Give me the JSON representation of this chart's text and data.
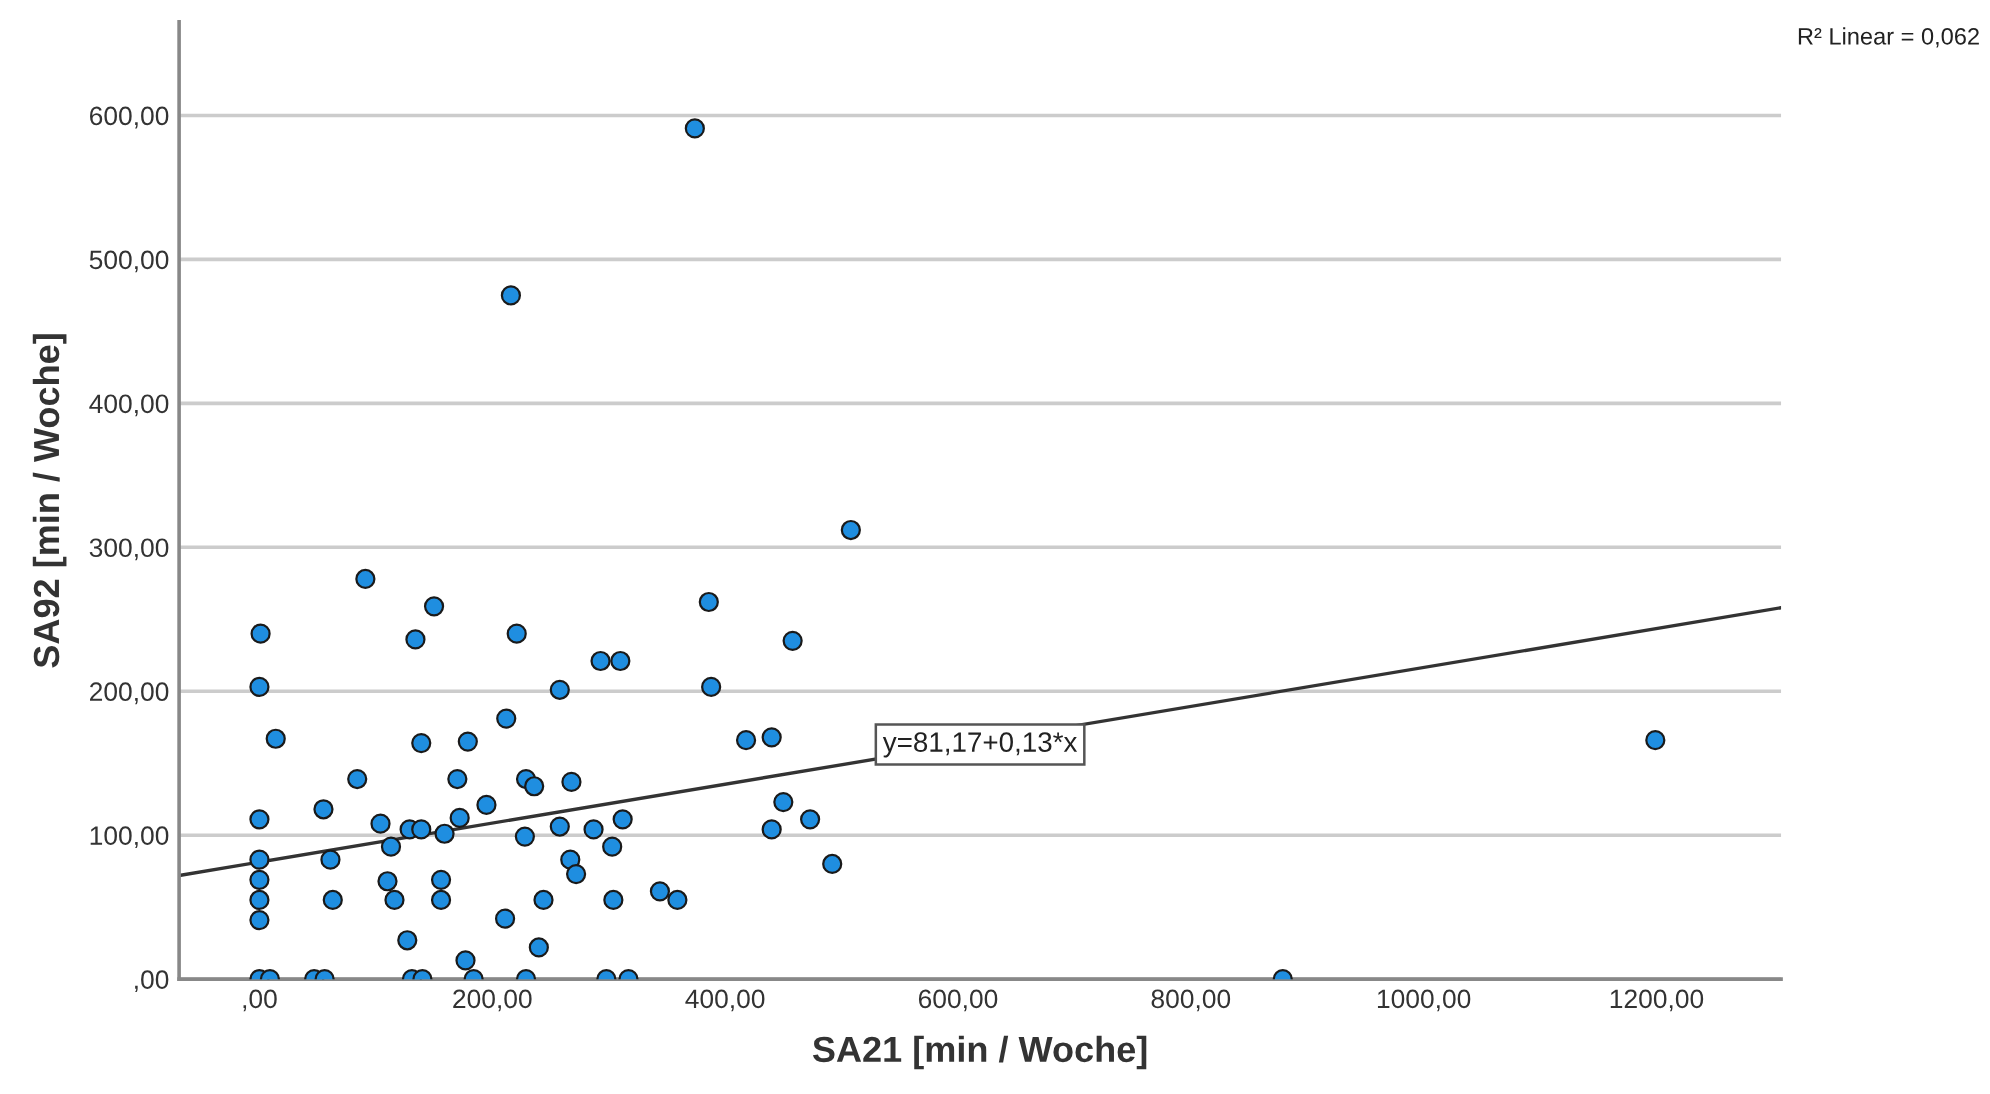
{
  "chart_data": {
    "type": "scatter",
    "xlabel": "SA21 [min / Woche]",
    "ylabel": "SA92 [min / Woche]",
    "annotations": [
      "R² Linear = 0,062",
      {
        "text": "y=81,17+0,13*x",
        "x": 619,
        "y": 163
      }
    ],
    "xlim": [
      -69,
      1307
    ],
    "ylim": [
      0,
      665
    ],
    "xticks": [
      {
        "value": 0,
        "label": ",00"
      },
      {
        "value": 200,
        "label": "200,00"
      },
      {
        "value": 400,
        "label": "400,00"
      },
      {
        "value": 600,
        "label": "600,00"
      },
      {
        "value": 800,
        "label": "800,00"
      },
      {
        "value": 1000,
        "label": "1000,00"
      },
      {
        "value": 1200,
        "label": "1200,00"
      }
    ],
    "yticks": [
      {
        "value": 0,
        "label": ",00"
      },
      {
        "value": 100,
        "label": "100,00"
      },
      {
        "value": 200,
        "label": "200,00"
      },
      {
        "value": 300,
        "label": "300,00"
      },
      {
        "value": 400,
        "label": "400,00"
      },
      {
        "value": 500,
        "label": "500,00"
      },
      {
        "value": 600,
        "label": "600,00"
      }
    ],
    "grid": "y",
    "series": [
      {
        "marker": "circle",
        "color": "#1f8ee0",
        "x": [
          1,
          0,
          14,
          0,
          0,
          0,
          0,
          0,
          0,
          9,
          47,
          56,
          55,
          61,
          63,
          84,
          91,
          104,
          110,
          113,
          116,
          127,
          129,
          139,
          131,
          140,
          134,
          150,
          139,
          156,
          156,
          159,
          170,
          172,
          179,
          177,
          184,
          195,
          211,
          212,
          221,
          228,
          229,
          236,
          229,
          240,
          244,
          258,
          258,
          267,
          272,
          268,
          287,
          312,
          303,
          304,
          293,
          310,
          298,
          317,
          386,
          388,
          344,
          359,
          418,
          440,
          450,
          440,
          473,
          492,
          458,
          508,
          374,
          216,
          1199,
          879
        ],
        "values": [
          240,
          203,
          167,
          111,
          83,
          69,
          55,
          41,
          0,
          0,
          0,
          0,
          118,
          83,
          55,
          139,
          278,
          108,
          68,
          92,
          55,
          27,
          104,
          104,
          0,
          0,
          236,
          259,
          164,
          69,
          55,
          101,
          139,
          112,
          165,
          13,
          0,
          121,
          42,
          181,
          240,
          99,
          139,
          134,
          0,
          22,
          55,
          201,
          106,
          83,
          73,
          137,
          104,
          111,
          92,
          55,
          221,
          221,
          0,
          0,
          262,
          203,
          61,
          55,
          166,
          168,
          123,
          104,
          111,
          80,
          235,
          312,
          591,
          475,
          166,
          0
        ]
      },
      {
        "type": "line",
        "color": "#333333",
        "x": [
          -69,
          1307
        ],
        "values": [
          72,
          258
        ]
      }
    ]
  }
}
